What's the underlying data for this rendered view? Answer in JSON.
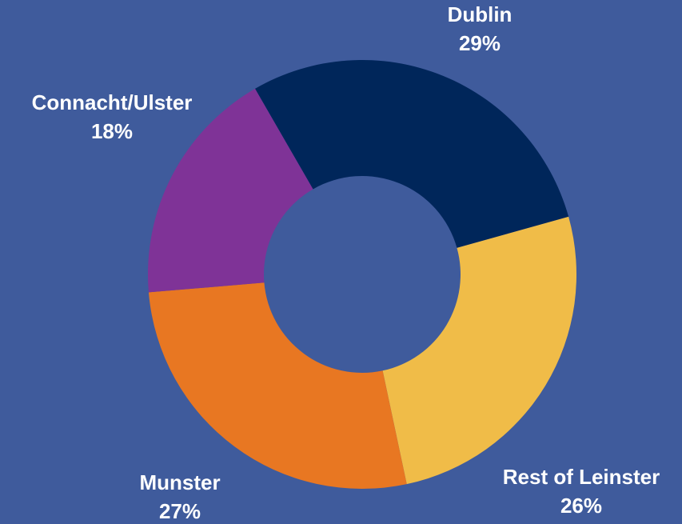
{
  "chart_data": {
    "type": "donut",
    "categories": [
      "Dublin",
      "Rest of Leinster",
      "Munster",
      "Connacht/Ulster"
    ],
    "values": [
      29,
      26,
      27,
      18
    ],
    "value_labels": [
      "29%",
      "26%",
      "27%",
      "18%"
    ],
    "colors": [
      "#00265a",
      "#f0bc48",
      "#e87722",
      "#7f3397"
    ]
  }
}
